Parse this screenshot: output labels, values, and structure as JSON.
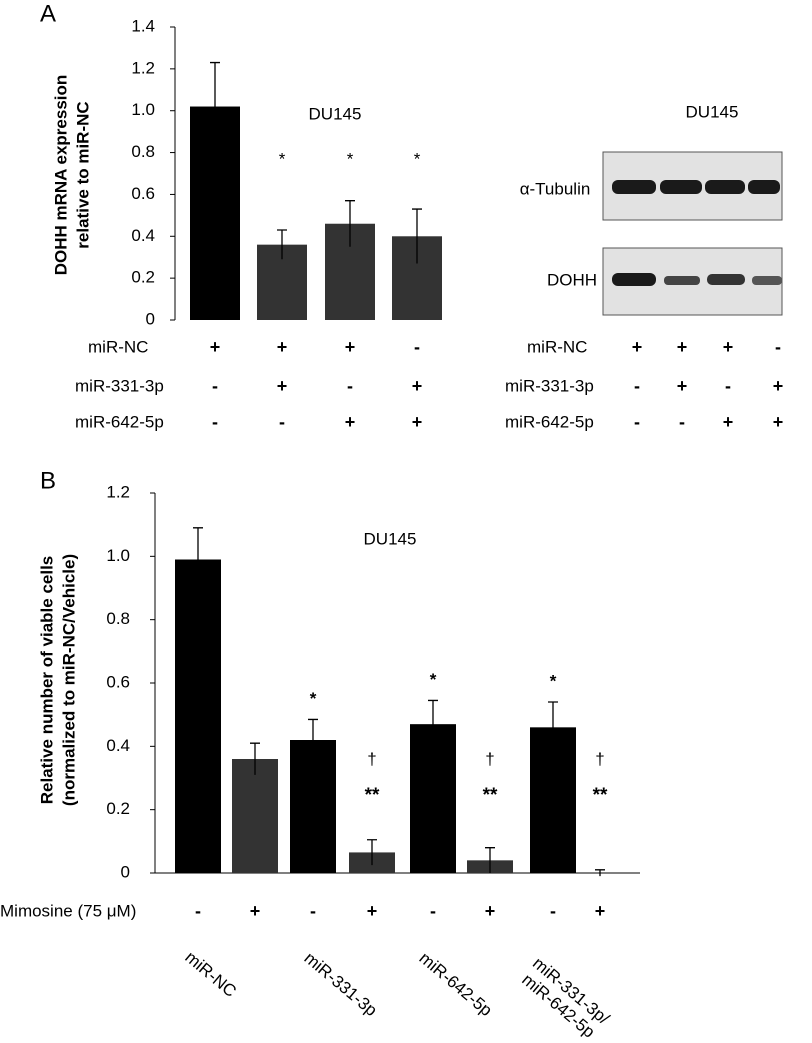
{
  "chart_data": [
    {
      "type": "bar",
      "panel": "A",
      "title": "DU145",
      "ylabel": [
        "DOHH mRNA expression",
        "relative to miR-NC"
      ],
      "values": [
        1.02,
        0.36,
        0.46,
        0.4
      ],
      "errors": [
        0.21,
        0.07,
        0.11,
        0.13
      ],
      "colors": [
        "#000000",
        "#333333",
        "#333333",
        "#333333"
      ],
      "annotations": [
        null,
        "*",
        "*",
        "*"
      ],
      "ylim": [
        0,
        1.4
      ],
      "yticks": [
        0,
        0.2,
        0.4,
        0.6,
        0.8,
        {
          "value": 1,
          "label": "1.0"
        },
        1.2,
        1.4
      ],
      "conditions": [
        {
          "label": "miR-NC",
          "signs": [
            "+",
            "+",
            "+",
            "-"
          ]
        },
        {
          "label": "miR-331-3p",
          "signs": [
            "-",
            "+",
            "-",
            "+"
          ]
        },
        {
          "label": "miR-642-5p",
          "signs": [
            "-",
            "-",
            "+",
            "+"
          ]
        }
      ]
    },
    {
      "type": "bar",
      "panel": "B",
      "title": "DU145",
      "ylabel": [
        "Relative number of viable cells",
        "(normalized to miR-NC/Vehicle)"
      ],
      "categories": [
        "miR-NC",
        "miR-331-3p",
        "miR-642-5p",
        "miR-331-3p/\nmiR-642-5p"
      ],
      "series": [
        {
          "color": "#000000",
          "values": [
            0.99,
            0.42,
            0.47,
            0.46
          ],
          "errors": [
            0.1,
            0.065,
            0.075,
            0.08
          ],
          "annotations": [
            null,
            "*",
            "*",
            "*"
          ]
        },
        {
          "color": "#333333",
          "values": [
            0.36,
            0.065,
            0.04,
            0.0
          ],
          "errors": [
            0.05,
            0.04,
            0.04,
            0.01
          ],
          "annotations": [
            null,
            "†",
            "†",
            "†"
          ],
          "annotations2": [
            null,
            "**",
            "**",
            "**"
          ]
        }
      ],
      "ylim": [
        0,
        1.2
      ],
      "yticks": [
        0,
        0.2,
        0.4,
        0.6,
        0.8,
        {
          "value": 1,
          "label": "1.0"
        },
        1.2
      ],
      "mimosine": {
        "label": "Mimosine (75 μM)",
        "signs": [
          "-",
          "+",
          "-",
          "+",
          "-",
          "+",
          "-",
          "+"
        ]
      }
    }
  ],
  "blot": {
    "title": "DU145",
    "rows": [
      "α-Tubulin",
      "DOHH"
    ],
    "conditions": [
      {
        "label": "miR-NC",
        "signs": [
          "+",
          "+",
          "+",
          "-"
        ]
      },
      {
        "label": "miR-331-3p",
        "signs": [
          "-",
          "+",
          "-",
          "+"
        ]
      },
      {
        "label": "miR-642-5p",
        "signs": [
          "-",
          "-",
          "+",
          "+"
        ]
      }
    ]
  }
}
